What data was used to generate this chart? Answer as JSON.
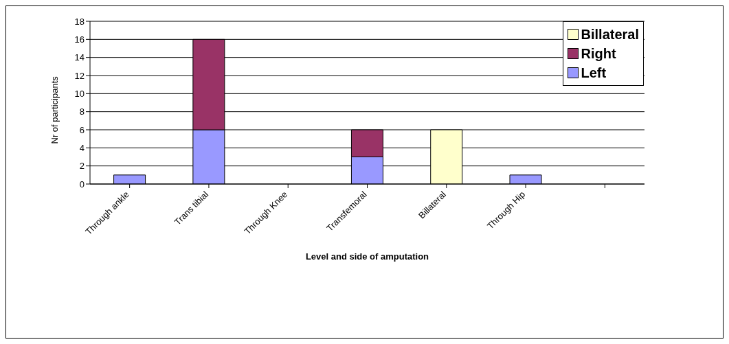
{
  "chart_data": {
    "type": "bar",
    "stacked": true,
    "xlabel": "Level and side of amputation",
    "ylabel": "Nr of participants",
    "categories": [
      "Through ankle",
      "Trans tibial",
      "Through Knee",
      "Transfemoral",
      "Billateral",
      "Through Hip",
      null
    ],
    "series": [
      {
        "name": "Left",
        "color": "#9999ff",
        "values": [
          1,
          6,
          null,
          3,
          null,
          1,
          null
        ]
      },
      {
        "name": "Right",
        "color": "#993366",
        "values": [
          null,
          10,
          null,
          3,
          null,
          null,
          null
        ]
      },
      {
        "name": "Billateral",
        "color": "#ffffcc",
        "values": [
          null,
          null,
          null,
          null,
          6,
          null,
          null
        ]
      }
    ],
    "ylim": [
      0,
      18
    ],
    "yticks": [
      0,
      2,
      4,
      6,
      8,
      10,
      12,
      14,
      16,
      18
    ],
    "grid": "y",
    "legend": "top right"
  }
}
